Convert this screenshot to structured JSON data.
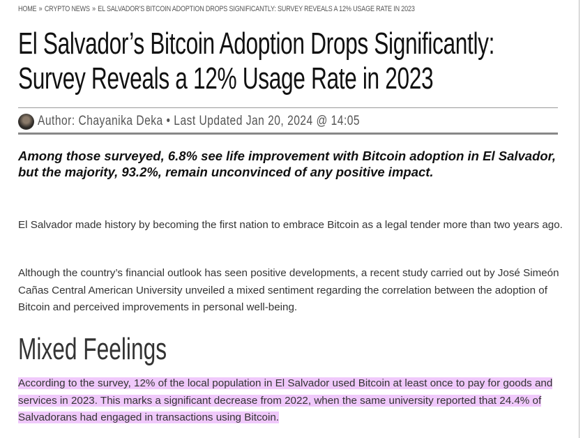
{
  "breadcrumb": {
    "items": [
      "HOME",
      "CRYPTO NEWS",
      "EL SALVADOR’S BITCOIN ADOPTION DROPS SIGNIFICANTLY: SURVEY REVEALS A 12% USAGE RATE IN 2023"
    ],
    "separator": "»"
  },
  "article": {
    "title_lines": [
      "El Salvador’s Bitcoin Adoption Drops Significantly:",
      "Survey Reveals a 12% Usage Rate in 2023"
    ],
    "byline": "Author: Chayanika Deka • Last Updated Jan 20, 2024 @ 14:05",
    "lead": "Among those surveyed, 6.8% see life improvement with Bitcoin adoption in El Salvador, but the majority, 93.2%, remain unconvinced of any positive impact.",
    "paragraphs": [
      "El Salvador made history by becoming the first nation to embrace Bitcoin as a legal tender more than two years ago.",
      "Although the country’s financial outlook has seen positive developments, a recent study carried out by José Simeón Cañas Central American University unveiled a mixed sentiment regarding the correlation between the adoption of Bitcoin and perceived improvements in personal well-being."
    ],
    "heading": "Mixed Feelings",
    "highlighted_paragraph": "According to the survey, 12% of the local population in El Salvador used Bitcoin at least once to pay for goods and services in 2023. This marks a significant decrease from 2022, when the same university reported that 24.4% of Salvadorans had engaged in transactions using Bitcoin."
  }
}
